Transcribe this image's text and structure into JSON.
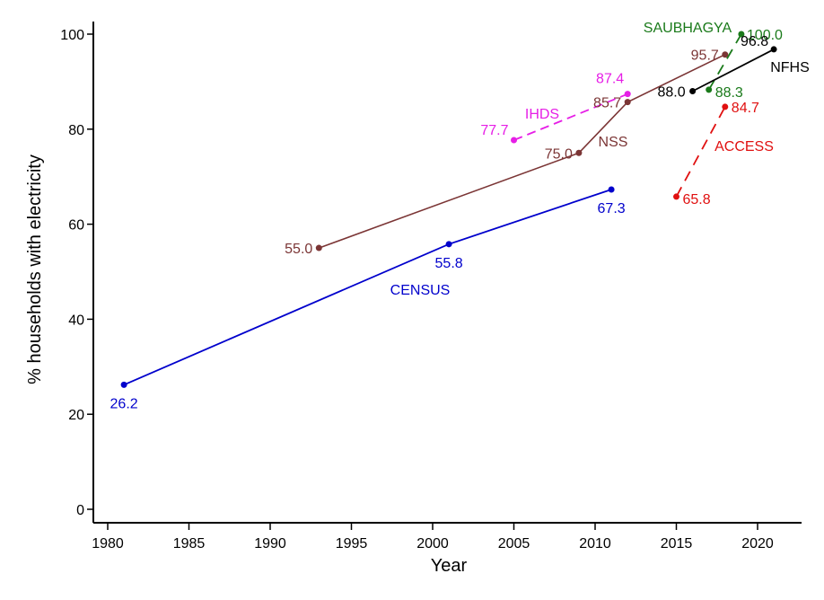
{
  "chart_data": {
    "type": "line",
    "title": "",
    "xlabel": "Year",
    "ylabel": "% households with electricity",
    "xlim": [
      1979,
      2023
    ],
    "ylim": [
      -2,
      102
    ],
    "xticks": [
      1980,
      1985,
      1990,
      1995,
      2000,
      2005,
      2010,
      2015,
      2020
    ],
    "yticks": [
      0,
      20,
      40,
      60,
      80,
      100
    ],
    "xtick_labels": [
      "1980",
      "1985",
      "1990",
      "1995",
      "2000",
      "2005",
      "2010",
      "2015",
      "2020"
    ],
    "ytick_labels": [
      "0",
      "20",
      "40",
      "60",
      "80",
      "100"
    ],
    "grid": false,
    "legend": "none",
    "series": [
      {
        "name": "CENSUS",
        "color": "#0000cc",
        "dash": "solid",
        "x": [
          1981,
          2001,
          2011
        ],
        "y": [
          26.2,
          55.8,
          67.3
        ],
        "labels": [
          "26.2",
          "55.8",
          "67.3"
        ]
      },
      {
        "name": "NSS",
        "color": "#7b3535",
        "dash": "solid",
        "x": [
          1993,
          2009,
          2012,
          2018
        ],
        "y": [
          55.0,
          75.0,
          85.7,
          95.7
        ],
        "labels": [
          "55.0",
          "75.0",
          "85.7",
          "95.7"
        ]
      },
      {
        "name": "IHDS",
        "color": "#e61ee6",
        "dash": "dash",
        "x": [
          2005,
          2012
        ],
        "y": [
          77.7,
          87.4
        ],
        "labels": [
          "77.7",
          "87.4"
        ]
      },
      {
        "name": "ACCESS",
        "color": "#e01010",
        "dash": "longdash",
        "x": [
          2015,
          2018
        ],
        "y": [
          65.8,
          84.7
        ],
        "labels": [
          "65.8",
          "84.7"
        ]
      },
      {
        "name": "SAUBHAGYA",
        "color": "#1a7a1a",
        "dash": "longdash",
        "x": [
          2017,
          2019
        ],
        "y": [
          88.3,
          100.0
        ],
        "labels": [
          "88.3",
          "100.0"
        ]
      },
      {
        "name": "NFHS",
        "color": "#000000",
        "dash": "solid",
        "x": [
          2016,
          2021
        ],
        "y": [
          88.0,
          96.8
        ],
        "labels": [
          "88.0",
          "96.8"
        ]
      }
    ]
  }
}
